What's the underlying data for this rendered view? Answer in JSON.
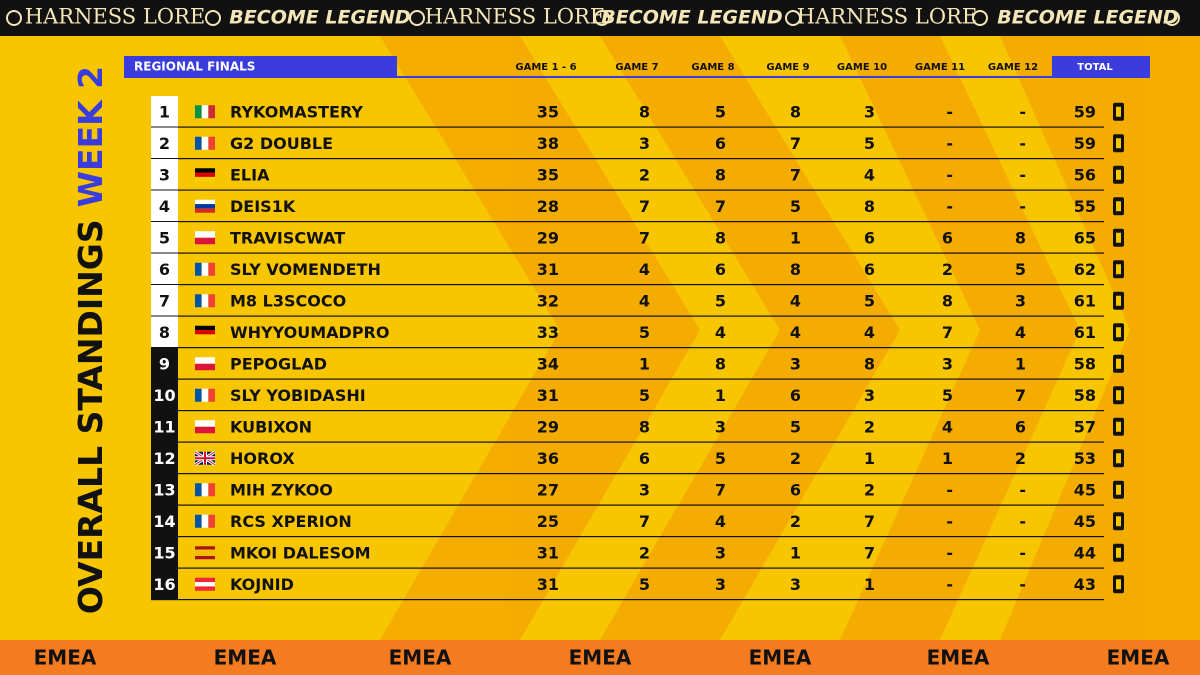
{
  "banner": [
    "HARNESS LORE",
    "BECOME LEGEND",
    "HARNESS LORE",
    "BECOME LEGEND",
    "HARNESS LORE",
    "BECOME LEGEND"
  ],
  "title": {
    "line1": "OVERALL STANDINGS",
    "line2": "WEEK 2"
  },
  "table": {
    "label": "REGIONAL FINALS",
    "columns": [
      "GAME 1 - 6",
      "GAME 7",
      "GAME 8",
      "GAME 9",
      "GAME 10",
      "GAME 11",
      "GAME 12",
      "TOTAL"
    ],
    "rows": [
      [
        1,
        "RYKOMASTERY",
        35,
        8,
        5,
        8,
        3,
        "-",
        "-",
        59
      ],
      [
        2,
        "G2 DOUBLE",
        38,
        3,
        6,
        7,
        5,
        "-",
        "-",
        59
      ],
      [
        3,
        "ELIA",
        35,
        2,
        8,
        7,
        4,
        "-",
        "-",
        56
      ],
      [
        4,
        "DEIS1K",
        28,
        7,
        7,
        5,
        8,
        "-",
        "-",
        55
      ],
      [
        5,
        "TRAVISCWAT",
        29,
        7,
        8,
        1,
        6,
        6,
        8,
        65
      ],
      [
        6,
        "SLY VOMENDETH",
        31,
        4,
        6,
        8,
        6,
        2,
        5,
        62
      ],
      [
        7,
        "M8 L3SCOCO",
        32,
        4,
        5,
        4,
        5,
        8,
        3,
        61
      ],
      [
        8,
        "WHYYOUMADPRO",
        33,
        5,
        4,
        4,
        4,
        7,
        4,
        61
      ],
      [
        9,
        "PEPOGLAD",
        34,
        1,
        8,
        3,
        8,
        3,
        1,
        58
      ],
      [
        10,
        "SLY YOBIDASHI",
        31,
        5,
        1,
        6,
        3,
        5,
        7,
        58
      ],
      [
        11,
        "KUBIXON",
        29,
        8,
        3,
        5,
        2,
        4,
        6,
        57
      ],
      [
        12,
        "HOROX",
        36,
        6,
        5,
        2,
        1,
        1,
        2,
        53
      ],
      [
        13,
        "MIH ZYKOO",
        27,
        3,
        7,
        6,
        2,
        "-",
        "-",
        45
      ],
      [
        14,
        "RCS XPERION",
        25,
        7,
        4,
        2,
        7,
        "-",
        "-",
        45
      ],
      [
        15,
        "MKOI DALESOM",
        31,
        2,
        3,
        1,
        7,
        "-",
        "-",
        44
      ],
      [
        16,
        "KOJNID",
        31,
        5,
        3,
        3,
        1,
        "-",
        "-",
        43
      ]
    ]
  },
  "footer": [
    "EMEA",
    "EMEA",
    "EMEA",
    "EMEA",
    "EMEA",
    "EMEA",
    "EMEA"
  ]
}
